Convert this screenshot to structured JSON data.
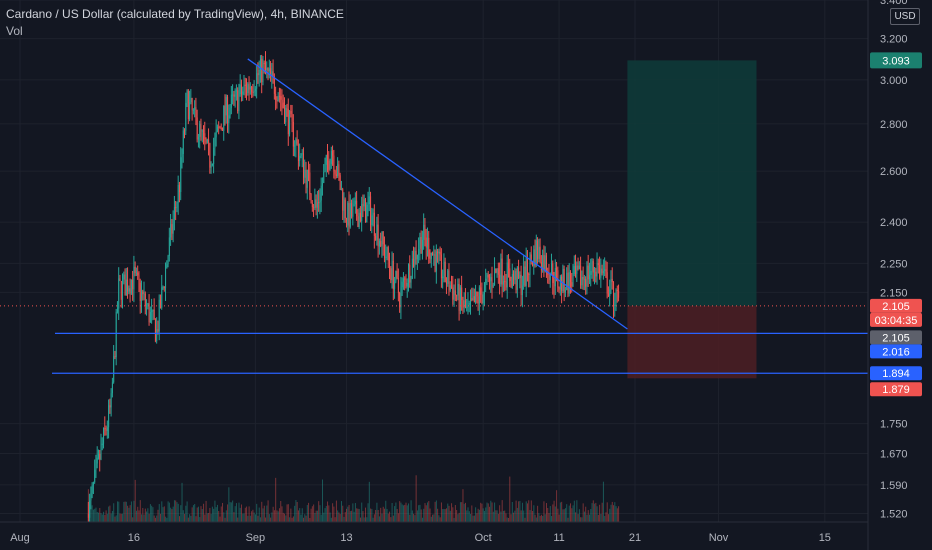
{
  "header": {
    "title": "Cardano / US Dollar (calculated by TradingView), 4h, BINANCE",
    "indicator": "Vol",
    "currency": "USD"
  },
  "colors": {
    "background": "#131722",
    "grid": "#1e222d",
    "up": "#26a69a",
    "down": "#ef5350",
    "trendline": "#2962ff",
    "profit_zone": "#0e3a38",
    "loss_zone": "#4a1e24",
    "axis_text": "#b2b5be"
  },
  "chart_data": {
    "type": "candlestick",
    "symbol": "ADAUSD",
    "interval": "4h",
    "exchange": "BINANCE",
    "title": "Cardano / US Dollar (calculated by TradingView), 4h, BINANCE",
    "y_scale": "log",
    "ylim": [
      1.5,
      3.4
    ],
    "y_ticks": [
      "3.400",
      "3.200",
      "3.000",
      "2.800",
      "2.600",
      "2.400",
      "2.250",
      "2.150",
      "1.750",
      "1.670",
      "1.590",
      "1.520"
    ],
    "x_ticks": [
      "Aug",
      "16",
      "Sep",
      "13",
      "Oct",
      "11",
      "21",
      "Nov",
      "15"
    ],
    "x_ticks_note": "date labels along time axis",
    "price_series_anchors": [
      {
        "date": "2021-08-10",
        "close": 1.52
      },
      {
        "date": "2021-08-13",
        "close": 1.8
      },
      {
        "date": "2021-08-14",
        "close": 2.16
      },
      {
        "date": "2021-08-16",
        "close": 2.2
      },
      {
        "date": "2021-08-19",
        "close": 2.02
      },
      {
        "date": "2021-08-22",
        "close": 2.55
      },
      {
        "date": "2021-08-23",
        "close": 2.9
      },
      {
        "date": "2021-08-26",
        "close": 2.65
      },
      {
        "date": "2021-08-28",
        "close": 2.85
      },
      {
        "date": "2021-09-02",
        "close": 3.05
      },
      {
        "date": "2021-09-04",
        "close": 2.95
      },
      {
        "date": "2021-09-07",
        "close": 2.65
      },
      {
        "date": "2021-09-09",
        "close": 2.45
      },
      {
        "date": "2021-09-11",
        "close": 2.7
      },
      {
        "date": "2021-09-13",
        "close": 2.42
      },
      {
        "date": "2021-09-16",
        "close": 2.45
      },
      {
        "date": "2021-09-20",
        "close": 2.14
      },
      {
        "date": "2021-09-23",
        "close": 2.35
      },
      {
        "date": "2021-09-26",
        "close": 2.2
      },
      {
        "date": "2021-09-29",
        "close": 2.08
      },
      {
        "date": "2021-10-03",
        "close": 2.23
      },
      {
        "date": "2021-10-06",
        "close": 2.18
      },
      {
        "date": "2021-10-08",
        "close": 2.3
      },
      {
        "date": "2021-10-11",
        "close": 2.18
      },
      {
        "date": "2021-10-14",
        "close": 2.2
      },
      {
        "date": "2021-10-16",
        "close": 2.24
      },
      {
        "date": "2021-10-19",
        "close": 2.105
      }
    ],
    "drawings": {
      "descending_trendline": [
        {
          "date": "2021-08-31",
          "price": 3.1
        },
        {
          "date": "2021-10-20",
          "price": 2.03
        }
      ],
      "horizontal_lines": [
        2.016,
        1.894
      ],
      "position": {
        "entry": 2.105,
        "target": 3.093,
        "stop": 1.879
      }
    },
    "price_labels": [
      {
        "value": "3.093",
        "kind": "target"
      },
      {
        "value": "2.105",
        "kind": "current"
      },
      {
        "value": "03:04:35",
        "kind": "countdown"
      },
      {
        "value": "2.105",
        "kind": "entry"
      },
      {
        "value": "2.016",
        "kind": "line"
      },
      {
        "value": "1.894",
        "kind": "line"
      },
      {
        "value": "1.879",
        "kind": "stop"
      }
    ],
    "grid": true,
    "legend": "top-left"
  }
}
